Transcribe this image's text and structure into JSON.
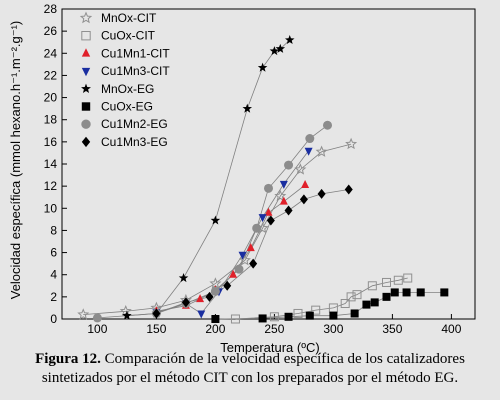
{
  "chart_data": {
    "type": "scatter",
    "xlabel": "Temperatura (ºC)",
    "ylabel": "Velocidad específica (mmol hexano.h⁻¹.m⁻².g⁻¹)",
    "xlim": [
      70,
      420
    ],
    "ylim": [
      0,
      28
    ],
    "xticks": [
      100,
      150,
      200,
      250,
      300,
      350,
      400
    ],
    "yticks": [
      0,
      2,
      4,
      6,
      8,
      10,
      12,
      14,
      16,
      18,
      20,
      22,
      24,
      26,
      28
    ],
    "grid": false,
    "legend_position": "top-left",
    "series": [
      {
        "name": "MnOx-CIT",
        "marker": "star-open",
        "color": "#909090",
        "points": [
          [
            88,
            0.4
          ],
          [
            124,
            0.7
          ],
          [
            150,
            1.0
          ],
          [
            175,
            1.7
          ],
          [
            200,
            3.2
          ],
          [
            225,
            5.3
          ],
          [
            240,
            8.2
          ],
          [
            255,
            11.1
          ],
          [
            272,
            13.5
          ],
          [
            290,
            15.1
          ],
          [
            315,
            15.8
          ]
        ]
      },
      {
        "name": "CuOx-CIT",
        "marker": "square-open",
        "color": "#909090",
        "points": [
          [
            217,
            0.0
          ],
          [
            250,
            0.2
          ],
          [
            270,
            0.5
          ],
          [
            285,
            0.8
          ],
          [
            300,
            1.0
          ],
          [
            310,
            1.4
          ],
          [
            315,
            2.0
          ],
          [
            320,
            2.2
          ],
          [
            333,
            3.0
          ],
          [
            345,
            3.3
          ],
          [
            355,
            3.5
          ],
          [
            363,
            3.7
          ]
        ]
      },
      {
        "name": "Cu1Mn1-CIT",
        "marker": "triangle-up",
        "color": "#e0202a",
        "points": [
          [
            150,
            0.7
          ],
          [
            175,
            1.2
          ],
          [
            187,
            1.8
          ],
          [
            200,
            2.6
          ],
          [
            215,
            4.0
          ],
          [
            230,
            6.4
          ],
          [
            245,
            9.6
          ],
          [
            258,
            10.6
          ],
          [
            276,
            12.1
          ]
        ]
      },
      {
        "name": "Cu1Mn3-CIT",
        "marker": "triangle-down",
        "color": "#1a2ea0",
        "points": [
          [
            150,
            0.6
          ],
          [
            175,
            1.4
          ],
          [
            188,
            0.5
          ],
          [
            203,
            2.5
          ],
          [
            223,
            5.8
          ],
          [
            240,
            9.2
          ],
          [
            258,
            12.2
          ],
          [
            279,
            15.2
          ]
        ]
      },
      {
        "name": "MnOx-EG",
        "marker": "star-filled",
        "color": "#000000",
        "points": [
          [
            125,
            0.3
          ],
          [
            150,
            0.5
          ],
          [
            173,
            3.7
          ],
          [
            200,
            8.9
          ],
          [
            227,
            19.0
          ],
          [
            240,
            22.7
          ],
          [
            250,
            24.2
          ],
          [
            255,
            24.4
          ],
          [
            263,
            25.2
          ]
        ]
      },
      {
        "name": "CuOx-EG",
        "marker": "square-filled",
        "color": "#000000",
        "points": [
          [
            200,
            0.0
          ],
          [
            240,
            0.05
          ],
          [
            262,
            0.2
          ],
          [
            280,
            0.3
          ],
          [
            300,
            0.3
          ],
          [
            318,
            0.5
          ],
          [
            328,
            1.3
          ],
          [
            335,
            1.5
          ],
          [
            345,
            2.0
          ],
          [
            352,
            2.4
          ],
          [
            362,
            2.4
          ],
          [
            374,
            2.4
          ],
          [
            394,
            2.4
          ]
        ]
      },
      {
        "name": "Cu1Mn2-EG",
        "marker": "circle-filled",
        "color": "#8c8c8c",
        "points": [
          [
            100,
            0.1
          ],
          [
            150,
            0.5
          ],
          [
            175,
            1.4
          ],
          [
            200,
            2.5
          ],
          [
            220,
            4.5
          ],
          [
            235,
            8.2
          ],
          [
            245,
            11.8
          ],
          [
            262,
            13.9
          ],
          [
            280,
            16.3
          ],
          [
            295,
            17.5
          ]
        ]
      },
      {
        "name": "Cu1Mn3-EG",
        "marker": "diamond-filled",
        "color": "#000000",
        "points": [
          [
            150,
            0.5
          ],
          [
            175,
            1.5
          ],
          [
            195,
            2.0
          ],
          [
            210,
            3.0
          ],
          [
            232,
            5.0
          ],
          [
            247,
            8.9
          ],
          [
            262,
            9.8
          ],
          [
            275,
            10.8
          ],
          [
            290,
            11.3
          ],
          [
            313,
            11.7
          ]
        ]
      }
    ]
  },
  "caption": {
    "label": "Figura 12.",
    "text": " Comparación de la velocidad específica de los catalizadores sintetizados por el método CIT con los preparados por el método EG."
  }
}
